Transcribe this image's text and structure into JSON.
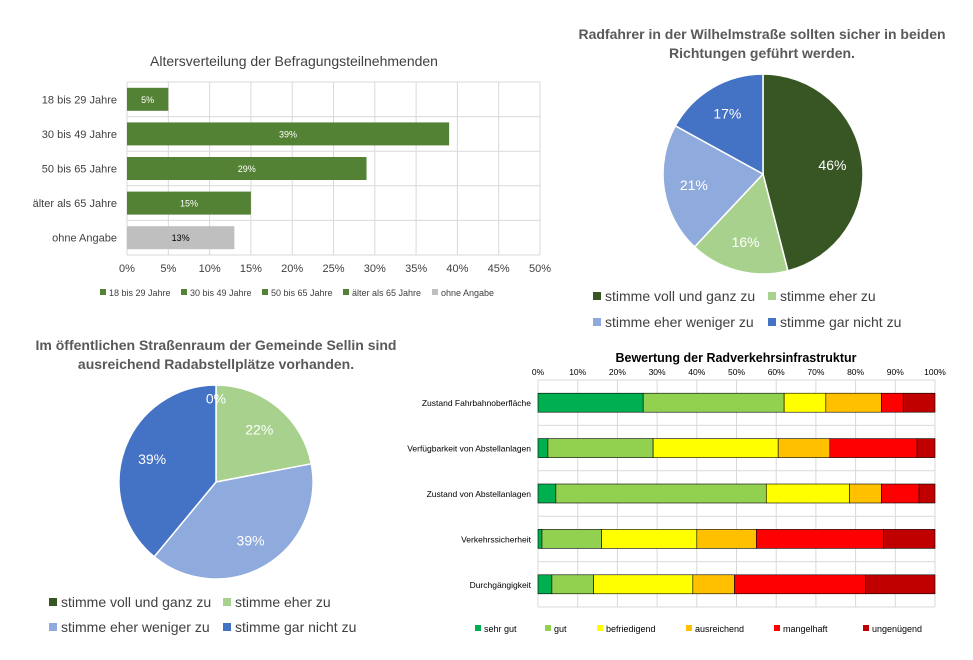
{
  "chart_data": [
    {
      "type": "bar",
      "orientation": "horizontal",
      "title": "Altersverteilung der Befragungsteilnehmenden",
      "categories": [
        "18 bis 29 Jahre",
        "30 bis 49 Jahre",
        "50 bis 65 Jahre",
        "älter als 65 Jahre",
        "ohne Angabe"
      ],
      "values": [
        5,
        39,
        29,
        15,
        13
      ],
      "data_labels": [
        "5%",
        "39%",
        "29%",
        "15%",
        "13%"
      ],
      "colors": [
        "#548235",
        "#548235",
        "#548235",
        "#548235",
        "#bfbfbf"
      ],
      "xlim": [
        0,
        50
      ],
      "x_ticks": [
        "0%",
        "5%",
        "10%",
        "15%",
        "20%",
        "25%",
        "30%",
        "35%",
        "40%",
        "45%",
        "50%"
      ],
      "grid": true,
      "legend_position": "bottom",
      "legend": [
        {
          "label": "18 bis 29 Jahre",
          "color": "#548235"
        },
        {
          "label": "30 bis 49 Jahre",
          "color": "#548235"
        },
        {
          "label": "50 bis 65 Jahre",
          "color": "#548235"
        },
        {
          "label": "älter als 65 Jahre",
          "color": "#548235"
        },
        {
          "label": "ohne Angabe",
          "color": "#bfbfbf"
        }
      ]
    },
    {
      "type": "pie",
      "title": "Radfahrer in der Wilhelmstraße sollten sicher in beiden Richtungen geführt werden.",
      "slices": [
        {
          "label": "stimme voll und ganz zu",
          "value": 46,
          "text": "46%",
          "color": "#375623"
        },
        {
          "label": "stimme eher zu",
          "value": 16,
          "text": "16%",
          "color": "#a9d18e"
        },
        {
          "label": "stimme eher weniger zu",
          "value": 21,
          "text": "21%",
          "color": "#8faadc"
        },
        {
          "label": "stimme gar nicht zu",
          "value": 17,
          "text": "17%",
          "color": "#4472c4"
        }
      ],
      "legend_position": "bottom"
    },
    {
      "type": "pie",
      "title": "Im öffentlichen Straßenraum der Gemeinde Sellin sind ausreichend Radabstellplätze vorhanden.",
      "slices": [
        {
          "label": "stimme voll und ganz zu",
          "value": 0,
          "text": "0%",
          "color": "#375623"
        },
        {
          "label": "stimme eher zu",
          "value": 22,
          "text": "22%",
          "color": "#a9d18e"
        },
        {
          "label": "stimme eher weniger zu",
          "value": 39,
          "text": "39%",
          "color": "#8faadc"
        },
        {
          "label": "stimme gar nicht zu",
          "value": 39,
          "text": "39%",
          "color": "#4472c4"
        }
      ],
      "legend_position": "bottom"
    },
    {
      "type": "bar",
      "orientation": "horizontal",
      "stacked": "100%",
      "title": "Bewertung der Radverkehrsinfrastruktur",
      "categories": [
        "Zustand Fahrbahnoberfläche",
        "Verfügbarkeit von Abstellanlagen",
        "Zustand von Abstellanlagen",
        "Verkehrssicherheit",
        "Durchgängigkeit"
      ],
      "x_ticks": [
        "0%",
        "10%",
        "20%",
        "30%",
        "40%",
        "50%",
        "60%",
        "70%",
        "80%",
        "90%",
        "100%"
      ],
      "xlim": [
        0,
        100
      ],
      "grid": true,
      "legend_position": "bottom",
      "series": [
        {
          "name": "sehr gut",
          "color": "#00b050",
          "values": [
            26.5,
            2.5,
            4.5,
            1,
            3.5
          ]
        },
        {
          "name": "gut",
          "color": "#92d050",
          "values": [
            35.5,
            26.5,
            53,
            15,
            10.5
          ]
        },
        {
          "name": "befriedigend",
          "color": "#ffff00",
          "values": [
            10.5,
            31.5,
            21,
            24,
            25
          ]
        },
        {
          "name": "ausreichend",
          "color": "#ffc000",
          "values": [
            14,
            13,
            8,
            15,
            10.5
          ]
        },
        {
          "name": "mangelhaft",
          "color": "#ff0000",
          "values": [
            5.5,
            22,
            9.5,
            32,
            33
          ]
        },
        {
          "name": "ungenügend",
          "color": "#c00000",
          "values": [
            8,
            4.5,
            4,
            13,
            17.5
          ]
        }
      ]
    }
  ]
}
